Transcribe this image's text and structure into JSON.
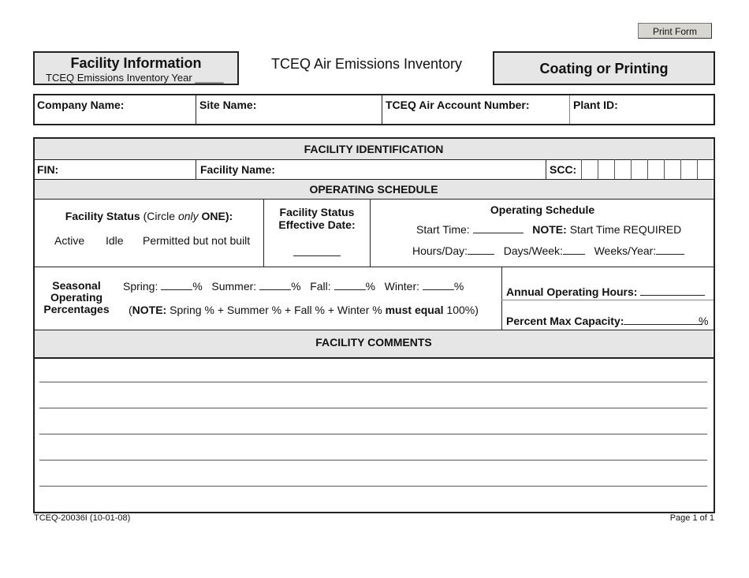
{
  "toolbar": {
    "print_label": "Print Form"
  },
  "header": {
    "facility_title": "Facility Information",
    "inventory_year_label": "TCEQ Emissions Inventory Year _____",
    "center_title": "TCEQ Air Emissions Inventory",
    "form_type": "Coating or Printing"
  },
  "company_row": {
    "company": "Company Name:",
    "site": "Site Name:",
    "account": "TCEQ Air Account Number:",
    "plant": "Plant ID:"
  },
  "facility_id": {
    "header": "FACILITY IDENTIFICATION",
    "fin": "FIN:",
    "facility_name": "Facility Name:",
    "scc": "SCC:",
    "scc_box_count": 8
  },
  "operating": {
    "header": "OPERATING SCHEDULE",
    "status_label": "Facility Status",
    "status_hint_pre": "(Circle ",
    "status_hint_em": "only",
    "status_hint_post": " ONE):",
    "status_options": [
      "Active",
      "Idle",
      "Permitted but not built"
    ],
    "effective_date_line1": "Facility Status",
    "effective_date_line2": "Effective Date:",
    "schedule_title": "Operating Schedule",
    "start_time": "Start Time:",
    "note_label": "NOTE:",
    "note_text": "Start Time REQUIRED",
    "hours_day": "Hours/Day:",
    "days_week": "Days/Week:",
    "weeks_year": "Weeks/Year:"
  },
  "seasonal": {
    "label_1": "Seasonal",
    "label_2": "Operating",
    "label_3": "Percentages",
    "spring": "Spring:",
    "summer": "Summer:",
    "fall": "Fall:",
    "winter": "Winter:",
    "pct": "%",
    "note_open": "(",
    "note_label": "NOTE:",
    "note_mid": " Spring % + Summer % + Fall % + Winter % ",
    "note_bold": "must equal",
    "note_end": " 100%)",
    "annual_hours": "Annual Operating Hours:",
    "max_capacity": "Percent Max Capacity:",
    "max_capacity_unit": "%"
  },
  "comments": {
    "header": "FACILITY COMMENTS",
    "line_count": 5
  },
  "footer": {
    "form_id": "TCEQ-20036I (10-01-08)",
    "page": "Page 1 of 1"
  }
}
